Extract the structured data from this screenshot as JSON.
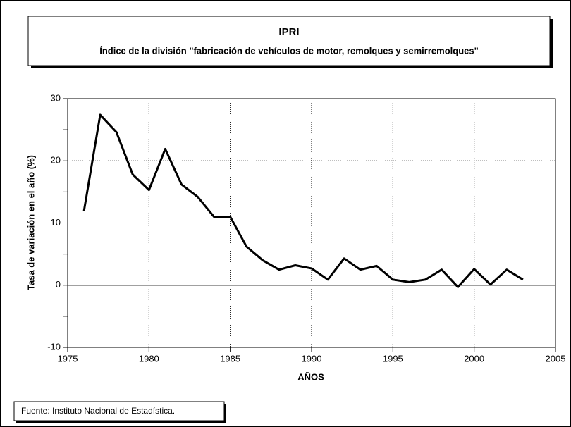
{
  "chart_data": {
    "type": "line",
    "title": "IPRI",
    "subtitle": "Índice de la división \"fabricación de vehículos de motor, remolques y semirremolques\"",
    "x_label": "AÑOS",
    "y_label": "Tasa de variación en el año (%)",
    "source": "Fuente: Instituto Nacional de Estadística.",
    "x": [
      1976,
      1977,
      1978,
      1979,
      1980,
      1981,
      1982,
      1983,
      1984,
      1985,
      1986,
      1987,
      1988,
      1989,
      1990,
      1991,
      1992,
      1993,
      1994,
      1995,
      1996,
      1997,
      1998,
      1999,
      2000,
      2001,
      2002,
      2003
    ],
    "series": [
      {
        "color": "#000000",
        "values": [
          11.9,
          27.4,
          24.6,
          17.8,
          15.3,
          21.9,
          16.2,
          14.2,
          11.0,
          11.0,
          6.2,
          4.0,
          2.5,
          3.2,
          2.7,
          0.9,
          4.3,
          2.5,
          3.1,
          0.9,
          0.5,
          0.9,
          2.5,
          -0.3,
          2.6,
          0.1,
          2.5,
          0.9
        ]
      }
    ],
    "xlim": [
      1975,
      2005
    ],
    "xticks": [
      1975,
      1980,
      1985,
      1990,
      1995,
      2000,
      2005
    ],
    "ylim": [
      -10,
      30
    ],
    "yticks": [
      -10,
      0,
      10,
      20,
      30
    ],
    "grid": true
  }
}
